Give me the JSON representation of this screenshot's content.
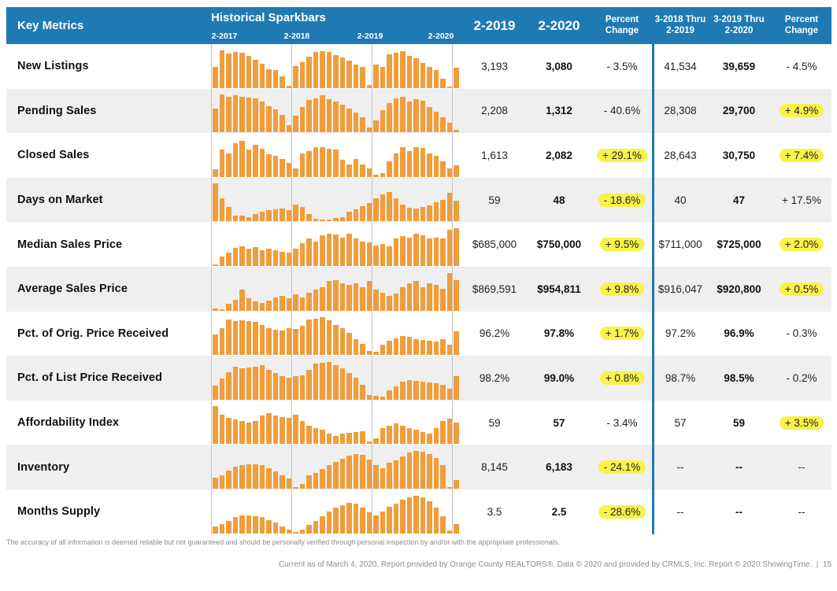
{
  "colors": {
    "header_blue": "#1f7ab4",
    "bar_orange": "#f09d3b",
    "highlight_yellow": "#f8f24b",
    "alt_row_gray": "#efefef",
    "gridline_gray": "#c4c4c4"
  },
  "header": {
    "key_metrics_label": "Key Metrics",
    "sparkbars_title": "Historical Sparkbars",
    "sparkbar_year_labels": [
      "2-2017",
      "2-2018",
      "2-2019",
      "2-2020"
    ],
    "value_columns": [
      "2-2019",
      "2-2020",
      "Percent\nChange",
      "3-2018 Thru\n2-2019",
      "3-2019 Thru\n2-2020",
      "Percent\nChange"
    ]
  },
  "rows": [
    {
      "label": "New Listings",
      "prior_month": "3,193",
      "current_month": "3,080",
      "pct_change_month": "- 3.5%",
      "pct_change_month_highlight": false,
      "prior_ytd": "41,534",
      "current_ytd": "39,659",
      "pct_change_ytd": "- 4.5%",
      "pct_change_ytd_highlight": false
    },
    {
      "label": "Pending Sales",
      "prior_month": "2,208",
      "current_month": "1,312",
      "pct_change_month": "- 40.6%",
      "pct_change_month_highlight": false,
      "prior_ytd": "28,308",
      "current_ytd": "29,700",
      "pct_change_ytd": "+ 4.9%",
      "pct_change_ytd_highlight": true
    },
    {
      "label": "Closed Sales",
      "prior_month": "1,613",
      "current_month": "2,082",
      "pct_change_month": "+ 29.1%",
      "pct_change_month_highlight": true,
      "prior_ytd": "28,643",
      "current_ytd": "30,750",
      "pct_change_ytd": "+ 7.4%",
      "pct_change_ytd_highlight": true
    },
    {
      "label": "Days on Market",
      "prior_month": "59",
      "current_month": "48",
      "pct_change_month": "- 18.6%",
      "pct_change_month_highlight": true,
      "prior_ytd": "40",
      "current_ytd": "47",
      "pct_change_ytd": "+ 17.5%",
      "pct_change_ytd_highlight": false
    },
    {
      "label": "Median Sales Price",
      "prior_month": "$685,000",
      "current_month": "$750,000",
      "pct_change_month": "+ 9.5%",
      "pct_change_month_highlight": true,
      "prior_ytd": "$711,000",
      "current_ytd": "$725,000",
      "pct_change_ytd": "+ 2.0%",
      "pct_change_ytd_highlight": true
    },
    {
      "label": "Average Sales Price",
      "prior_month": "$869,591",
      "current_month": "$954,811",
      "pct_change_month": "+ 9.8%",
      "pct_change_month_highlight": true,
      "prior_ytd": "$916,047",
      "current_ytd": "$920,800",
      "pct_change_ytd": "+ 0.5%",
      "pct_change_ytd_highlight": true
    },
    {
      "label": "Pct. of Orig. Price Received",
      "prior_month": "96.2%",
      "current_month": "97.8%",
      "pct_change_month": "+ 1.7%",
      "pct_change_month_highlight": true,
      "prior_ytd": "97.2%",
      "current_ytd": "96.9%",
      "pct_change_ytd": "- 0.3%",
      "pct_change_ytd_highlight": false
    },
    {
      "label": "Pct. of List Price Received",
      "prior_month": "98.2%",
      "current_month": "99.0%",
      "pct_change_month": "+ 0.8%",
      "pct_change_month_highlight": true,
      "prior_ytd": "98.7%",
      "current_ytd": "98.5%",
      "pct_change_ytd": "- 0.2%",
      "pct_change_ytd_highlight": false
    },
    {
      "label": "Affordability Index",
      "prior_month": "59",
      "current_month": "57",
      "pct_change_month": "- 3.4%",
      "pct_change_month_highlight": false,
      "prior_ytd": "57",
      "current_ytd": "59",
      "pct_change_ytd": "+ 3.5%",
      "pct_change_ytd_highlight": true
    },
    {
      "label": "Inventory",
      "prior_month": "8,145",
      "current_month": "6,183",
      "pct_change_month": "- 24.1%",
      "pct_change_month_highlight": true,
      "prior_ytd": "--",
      "current_ytd": "--",
      "pct_change_ytd": "--",
      "pct_change_ytd_highlight": false
    },
    {
      "label": "Months Supply",
      "prior_month": "3.5",
      "current_month": "2.5",
      "pct_change_month": "- 28.6%",
      "pct_change_month_highlight": true,
      "prior_ytd": "--",
      "current_ytd": "--",
      "pct_change_ytd": "--",
      "pct_change_ytd_highlight": false
    }
  ],
  "chart_data": {
    "type": "bar",
    "description": "Historical sparkbars: monthly values Feb 2017 through Feb 2020, estimated relative heights 0-100",
    "x_start": "2-2017",
    "x_end": "2-2020",
    "months": 37,
    "year_tick_month_indexes": [
      0,
      12,
      24,
      36
    ],
    "series": [
      {
        "name": "New Listings",
        "values": [
          55,
          100,
          90,
          96,
          92,
          85,
          75,
          63,
          50,
          48,
          30,
          6,
          58,
          68,
          82,
          95,
          97,
          94,
          86,
          80,
          72,
          62,
          56,
          8,
          62,
          55,
          88,
          93,
          98,
          85,
          78,
          65,
          55,
          48,
          25,
          4,
          53
        ]
      },
      {
        "name": "Pending Sales",
        "values": [
          62,
          100,
          94,
          98,
          95,
          92,
          90,
          82,
          70,
          60,
          46,
          20,
          45,
          68,
          85,
          90,
          98,
          88,
          82,
          74,
          62,
          52,
          40,
          12,
          32,
          58,
          78,
          90,
          95,
          82,
          88,
          84,
          68,
          54,
          40,
          26,
          6
        ]
      },
      {
        "name": "Closed Sales",
        "values": [
          20,
          72,
          62,
          90,
          95,
          72,
          85,
          75,
          60,
          55,
          48,
          38,
          22,
          62,
          68,
          78,
          78,
          75,
          72,
          45,
          32,
          48,
          32,
          22,
          6,
          10,
          42,
          62,
          78,
          68,
          78,
          76,
          62,
          56,
          42,
          22,
          30
        ]
      },
      {
        "name": "Days on Market",
        "values": [
          100,
          62,
          38,
          15,
          16,
          12,
          20,
          26,
          30,
          32,
          34,
          30,
          45,
          38,
          20,
          8,
          5,
          6,
          9,
          12,
          26,
          32,
          40,
          48,
          62,
          72,
          78,
          62,
          45,
          36,
          34,
          38,
          42,
          50,
          58,
          75,
          55
        ]
      },
      {
        "name": "Median Sales Price",
        "values": [
          3,
          25,
          35,
          48,
          52,
          45,
          50,
          42,
          46,
          42,
          38,
          35,
          45,
          60,
          72,
          65,
          82,
          85,
          83,
          76,
          85,
          72,
          65,
          62,
          55,
          58,
          52,
          72,
          80,
          76,
          85,
          82,
          72,
          76,
          73,
          95,
          100
        ]
      },
      {
        "name": "Average Sales Price",
        "values": [
          5,
          3,
          18,
          28,
          55,
          32,
          25,
          20,
          26,
          34,
          38,
          32,
          42,
          35,
          48,
          55,
          62,
          78,
          80,
          72,
          68,
          72,
          62,
          78,
          55,
          48,
          38,
          45,
          62,
          72,
          78,
          62,
          72,
          68,
          58,
          100,
          80
        ]
      },
      {
        "name": "Pct. of Orig. Price Received",
        "values": [
          55,
          72,
          95,
          90,
          92,
          90,
          88,
          80,
          72,
          68,
          65,
          72,
          70,
          78,
          95,
          97,
          100,
          92,
          80,
          72,
          58,
          42,
          30,
          10,
          8,
          28,
          38,
          45,
          50,
          48,
          42,
          40,
          38,
          36,
          42,
          28,
          62
        ]
      },
      {
        "name": "Pct. of List Price Received",
        "values": [
          38,
          55,
          72,
          88,
          82,
          85,
          88,
          92,
          78,
          70,
          62,
          58,
          62,
          64,
          78,
          95,
          98,
          100,
          92,
          82,
          70,
          58,
          40,
          12,
          10,
          8,
          25,
          35,
          48,
          52,
          50,
          48,
          46,
          44,
          40,
          28,
          62
        ]
      },
      {
        "name": "Affordability Index",
        "values": [
          100,
          78,
          70,
          66,
          62,
          58,
          62,
          75,
          82,
          75,
          72,
          70,
          78,
          62,
          48,
          42,
          38,
          28,
          22,
          28,
          30,
          32,
          35,
          8,
          15,
          42,
          48,
          55,
          48,
          42,
          38,
          32,
          28,
          42,
          62,
          68,
          58
        ]
      },
      {
        "name": "Inventory",
        "values": [
          30,
          35,
          48,
          58,
          62,
          65,
          65,
          62,
          55,
          45,
          35,
          28,
          5,
          12,
          35,
          42,
          52,
          62,
          70,
          80,
          88,
          92,
          90,
          78,
          62,
          55,
          68,
          75,
          85,
          95,
          100,
          98,
          92,
          82,
          62,
          3,
          22
        ]
      },
      {
        "name": "Months Supply",
        "values": [
          18,
          25,
          32,
          42,
          46,
          46,
          45,
          42,
          35,
          28,
          18,
          10,
          4,
          10,
          22,
          32,
          45,
          58,
          68,
          75,
          80,
          78,
          68,
          55,
          48,
          58,
          70,
          78,
          88,
          95,
          100,
          95,
          85,
          68,
          45,
          8,
          25
        ]
      }
    ]
  },
  "footer": {
    "disclaimer": "The accuracy of all information is deemed reliable but not guaranteed and should be personally verified through personal inspection by and/or with the appropriate professionals.",
    "credit": "Current as of March 4, 2020. Report provided by Orange County REALTORS®. Data © 2020 and provided by CRMLS, Inc. Report © 2020 ShowingTime.",
    "page_number": "15"
  }
}
